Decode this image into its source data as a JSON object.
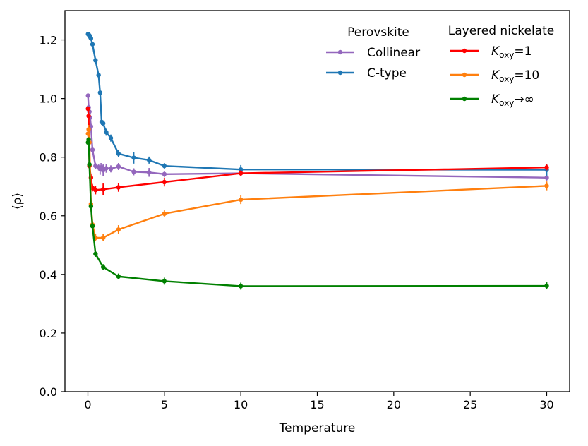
{
  "chart_data": {
    "type": "line",
    "title": "",
    "xlabel": "Temperature",
    "ylabel": "⟨ρ⟩",
    "xlim": [
      -1.5,
      31.5
    ],
    "ylim": [
      0.0,
      1.3
    ],
    "xticks": [
      0,
      5,
      10,
      15,
      20,
      25,
      30
    ],
    "xtick_labels": [
      "0",
      "5",
      "10",
      "15",
      "20",
      "25",
      "30"
    ],
    "yticks": [
      0.0,
      0.2,
      0.4,
      0.6,
      0.8,
      1.0,
      1.2
    ],
    "ytick_labels": [
      "0.0",
      "0.2",
      "0.4",
      "0.6",
      "0.8",
      "1.0",
      "1.2"
    ],
    "grid": false,
    "legends": [
      {
        "title": "Perovskite",
        "placement": "top-center",
        "entries": [
          {
            "series": "Collinear",
            "label": "Collinear"
          },
          {
            "series": "C-type",
            "label": "C-type"
          }
        ]
      },
      {
        "title": "Layered nickelate",
        "placement": "top-right",
        "entries": [
          {
            "series": "Koxy1",
            "label_main": "K",
            "label_sub": "oxy",
            "label_rest": "=1"
          },
          {
            "series": "Koxy10",
            "label_main": "K",
            "label_sub": "oxy",
            "label_rest": "=10"
          },
          {
            "series": "KoxyInf",
            "label_main": "K",
            "label_sub": "oxy",
            "label_rest": "→∞"
          }
        ]
      }
    ],
    "series": [
      {
        "name": "Collinear",
        "color": "#9467bd",
        "x": [
          0.01,
          0.05,
          0.1,
          0.15,
          0.2,
          0.3,
          0.5,
          0.7,
          0.8,
          0.9,
          1.0,
          1.2,
          1.5,
          2.0,
          3.0,
          4.0,
          5.0,
          10.0,
          30.0
        ],
        "y": [
          1.01,
          0.97,
          0.955,
          0.935,
          0.905,
          0.825,
          0.77,
          0.765,
          0.76,
          0.765,
          0.755,
          0.762,
          0.76,
          0.768,
          0.75,
          0.748,
          0.742,
          0.745,
          0.73
        ],
        "err": [
          0.005,
          0.008,
          0.008,
          0.008,
          0.008,
          0.008,
          0.01,
          0.01,
          0.02,
          0.015,
          0.02,
          0.015,
          0.012,
          0.012,
          0.012,
          0.015,
          0.01,
          0.01,
          0.01
        ]
      },
      {
        "name": "C-type",
        "color": "#1f77b4",
        "x": [
          0.01,
          0.05,
          0.1,
          0.15,
          0.2,
          0.3,
          0.5,
          0.7,
          0.8,
          0.9,
          1.0,
          1.2,
          1.5,
          2.0,
          3.0,
          4.0,
          5.0,
          10.0,
          30.0
        ],
        "y": [
          1.22,
          1.218,
          1.215,
          1.21,
          1.205,
          1.185,
          1.13,
          1.08,
          1.02,
          0.92,
          0.915,
          0.885,
          0.865,
          0.812,
          0.798,
          0.79,
          0.77,
          0.758,
          0.757
        ],
        "err": [
          0.003,
          0.003,
          0.003,
          0.003,
          0.003,
          0.005,
          0.005,
          0.005,
          0.005,
          0.01,
          0.01,
          0.012,
          0.012,
          0.012,
          0.02,
          0.012,
          0.01,
          0.015,
          0.02
        ]
      },
      {
        "name": "Koxy1",
        "color": "#ff0000",
        "x": [
          0.01,
          0.05,
          0.1,
          0.2,
          0.3,
          0.5,
          1.0,
          2.0,
          5.0,
          10.0,
          30.0
        ],
        "y": [
          0.965,
          0.94,
          0.77,
          0.73,
          0.695,
          0.688,
          0.69,
          0.697,
          0.715,
          0.745,
          0.765
        ],
        "err": [
          0.008,
          0.008,
          0.01,
          0.012,
          0.012,
          0.015,
          0.02,
          0.015,
          0.015,
          0.01,
          0.01
        ]
      },
      {
        "name": "Koxy10",
        "color": "#ff7f0e",
        "x": [
          0.01,
          0.05,
          0.1,
          0.2,
          0.3,
          0.5,
          1.0,
          2.0,
          5.0,
          10.0,
          30.0
        ],
        "y": [
          0.88,
          0.895,
          0.85,
          0.64,
          0.57,
          0.525,
          0.525,
          0.553,
          0.607,
          0.655,
          0.702
        ],
        "err": [
          0.015,
          0.015,
          0.012,
          0.012,
          0.012,
          0.012,
          0.012,
          0.015,
          0.012,
          0.015,
          0.015
        ]
      },
      {
        "name": "KoxyInf",
        "color": "#008000",
        "x": [
          0.01,
          0.05,
          0.1,
          0.2,
          0.3,
          0.5,
          1.0,
          2.0,
          5.0,
          10.0,
          30.0
        ],
        "y": [
          0.85,
          0.86,
          0.775,
          0.632,
          0.565,
          0.47,
          0.425,
          0.393,
          0.377,
          0.36,
          0.361
        ],
        "err": [
          0.008,
          0.008,
          0.01,
          0.01,
          0.01,
          0.01,
          0.01,
          0.01,
          0.012,
          0.012,
          0.012
        ]
      }
    ]
  }
}
